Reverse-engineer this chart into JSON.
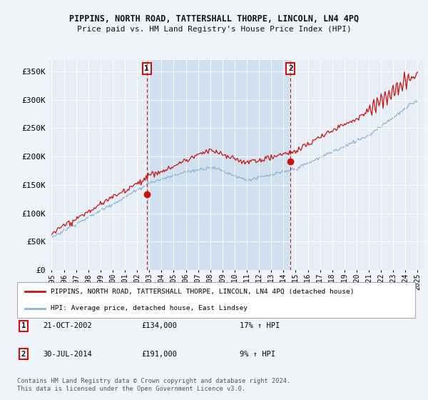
{
  "title": "PIPPINS, NORTH ROAD, TATTERSHALL THORPE, LINCOLN, LN4 4PQ",
  "subtitle": "Price paid vs. HM Land Registry's House Price Index (HPI)",
  "background_color": "#f0f4f8",
  "plot_bg_color": "#e8eef5",
  "shade_color": "#d0e0f0",
  "hpi_color": "#8ab4d8",
  "price_color": "#cc1111",
  "marker1_x": 2002.8,
  "marker2_x": 2014.58,
  "marker1_price": 134000,
  "marker2_price": 191000,
  "ylim": [
    0,
    370000
  ],
  "xlim": [
    1994.8,
    2025.5
  ],
  "yticks": [
    0,
    50000,
    100000,
    150000,
    200000,
    250000,
    300000,
    350000
  ],
  "ytick_labels": [
    "£0",
    "£50K",
    "£100K",
    "£150K",
    "£200K",
    "£250K",
    "£300K",
    "£350K"
  ],
  "xtick_years": [
    1995,
    1996,
    1997,
    1998,
    1999,
    2000,
    2001,
    2002,
    2003,
    2004,
    2005,
    2006,
    2007,
    2008,
    2009,
    2010,
    2011,
    2012,
    2013,
    2014,
    2015,
    2016,
    2017,
    2018,
    2019,
    2020,
    2021,
    2022,
    2023,
    2024,
    2025
  ],
  "legend_red_label": "PIPPINS, NORTH ROAD, TATTERSHALL THORPE, LINCOLN, LN4 4PQ (detached house)",
  "legend_blue_label": "HPI: Average price, detached house, East Lindsey",
  "table_rows": [
    {
      "num": "1",
      "date": "21-OCT-2002",
      "price": "£134,000",
      "hpi": "17% ↑ HPI"
    },
    {
      "num": "2",
      "date": "30-JUL-2014",
      "price": "£191,000",
      "hpi": "9% ↑ HPI"
    }
  ],
  "footnote": "Contains HM Land Registry data © Crown copyright and database right 2024.\nThis data is licensed under the Open Government Licence v3.0."
}
